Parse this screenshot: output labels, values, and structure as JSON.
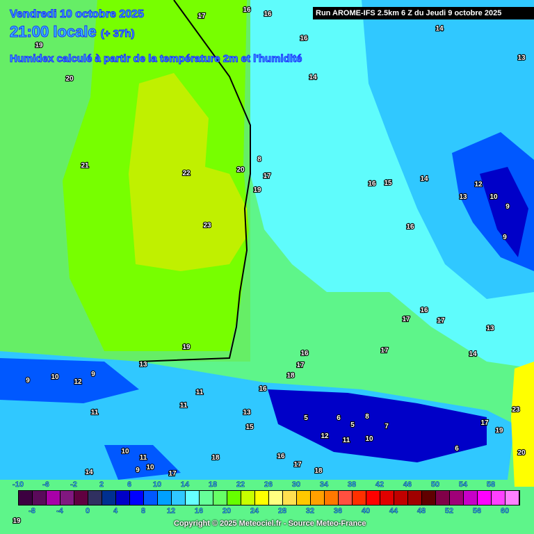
{
  "header": {
    "date": "Vendredi 10 octobre 2025",
    "time": "21:00 locale",
    "offset": "(+ 37h)",
    "parameter": "Humidex calculé à partir de la température 2m et l'humidité",
    "run": "Run AROME-IFS 2.5km 6 Z du Jeudi 9 octobre 2025"
  },
  "colorbar": {
    "labels_top": [
      "-10",
      "-6",
      "-2",
      "2",
      "6",
      "10",
      "14",
      "18",
      "22",
      "26",
      "30",
      "34",
      "38",
      "42",
      "46",
      "50",
      "54",
      "58"
    ],
    "labels_bottom": [
      "-8",
      "-4",
      "0",
      "4",
      "8",
      "12",
      "16",
      "20",
      "24",
      "28",
      "32",
      "36",
      "40",
      "44",
      "48",
      "52",
      "56",
      "60"
    ],
    "colors": [
      "#3c0040",
      "#5a0a5a",
      "#a800a8",
      "#801880",
      "#600040",
      "#303060",
      "#003090",
      "#0000c8",
      "#0000ff",
      "#0058ff",
      "#00a0ff",
      "#30c8ff",
      "#66ffff",
      "#66ff99",
      "#66ff66",
      "#66ff00",
      "#c8ff00",
      "#ffff00",
      "#ffff80",
      "#ffe050",
      "#ffc800",
      "#ffa000",
      "#ff7800",
      "#ff5040",
      "#ff3000",
      "#ff0000",
      "#e00000",
      "#c00000",
      "#a00000",
      "#600000",
      "#800048",
      "#a00078",
      "#c800c8",
      "#ff00ff",
      "#ff40ff",
      "#ff80ff"
    ]
  },
  "map_labels": [
    "17",
    "16",
    "16",
    "16",
    "14",
    "14",
    "13",
    "19",
    "20",
    "21",
    "22",
    "23",
    "19",
    "20",
    "8",
    "17",
    "19",
    "16",
    "15",
    "14",
    "13",
    "12",
    "10",
    "9",
    "9",
    "16",
    "17",
    "16",
    "17",
    "13",
    "14",
    "16",
    "17",
    "18",
    "17",
    "13",
    "9",
    "12",
    "10",
    "9",
    "11",
    "11",
    "11",
    "13",
    "15",
    "16",
    "5",
    "6",
    "5",
    "7",
    "11",
    "12",
    "10",
    "8",
    "6",
    "17",
    "19",
    "23",
    "20",
    "10",
    "11",
    "10",
    "9",
    "17",
    "18",
    "16",
    "17",
    "18",
    "19",
    "14"
  ],
  "copyright": "Copyright © 2025 Meteociel.fr - Source Meteo-France"
}
